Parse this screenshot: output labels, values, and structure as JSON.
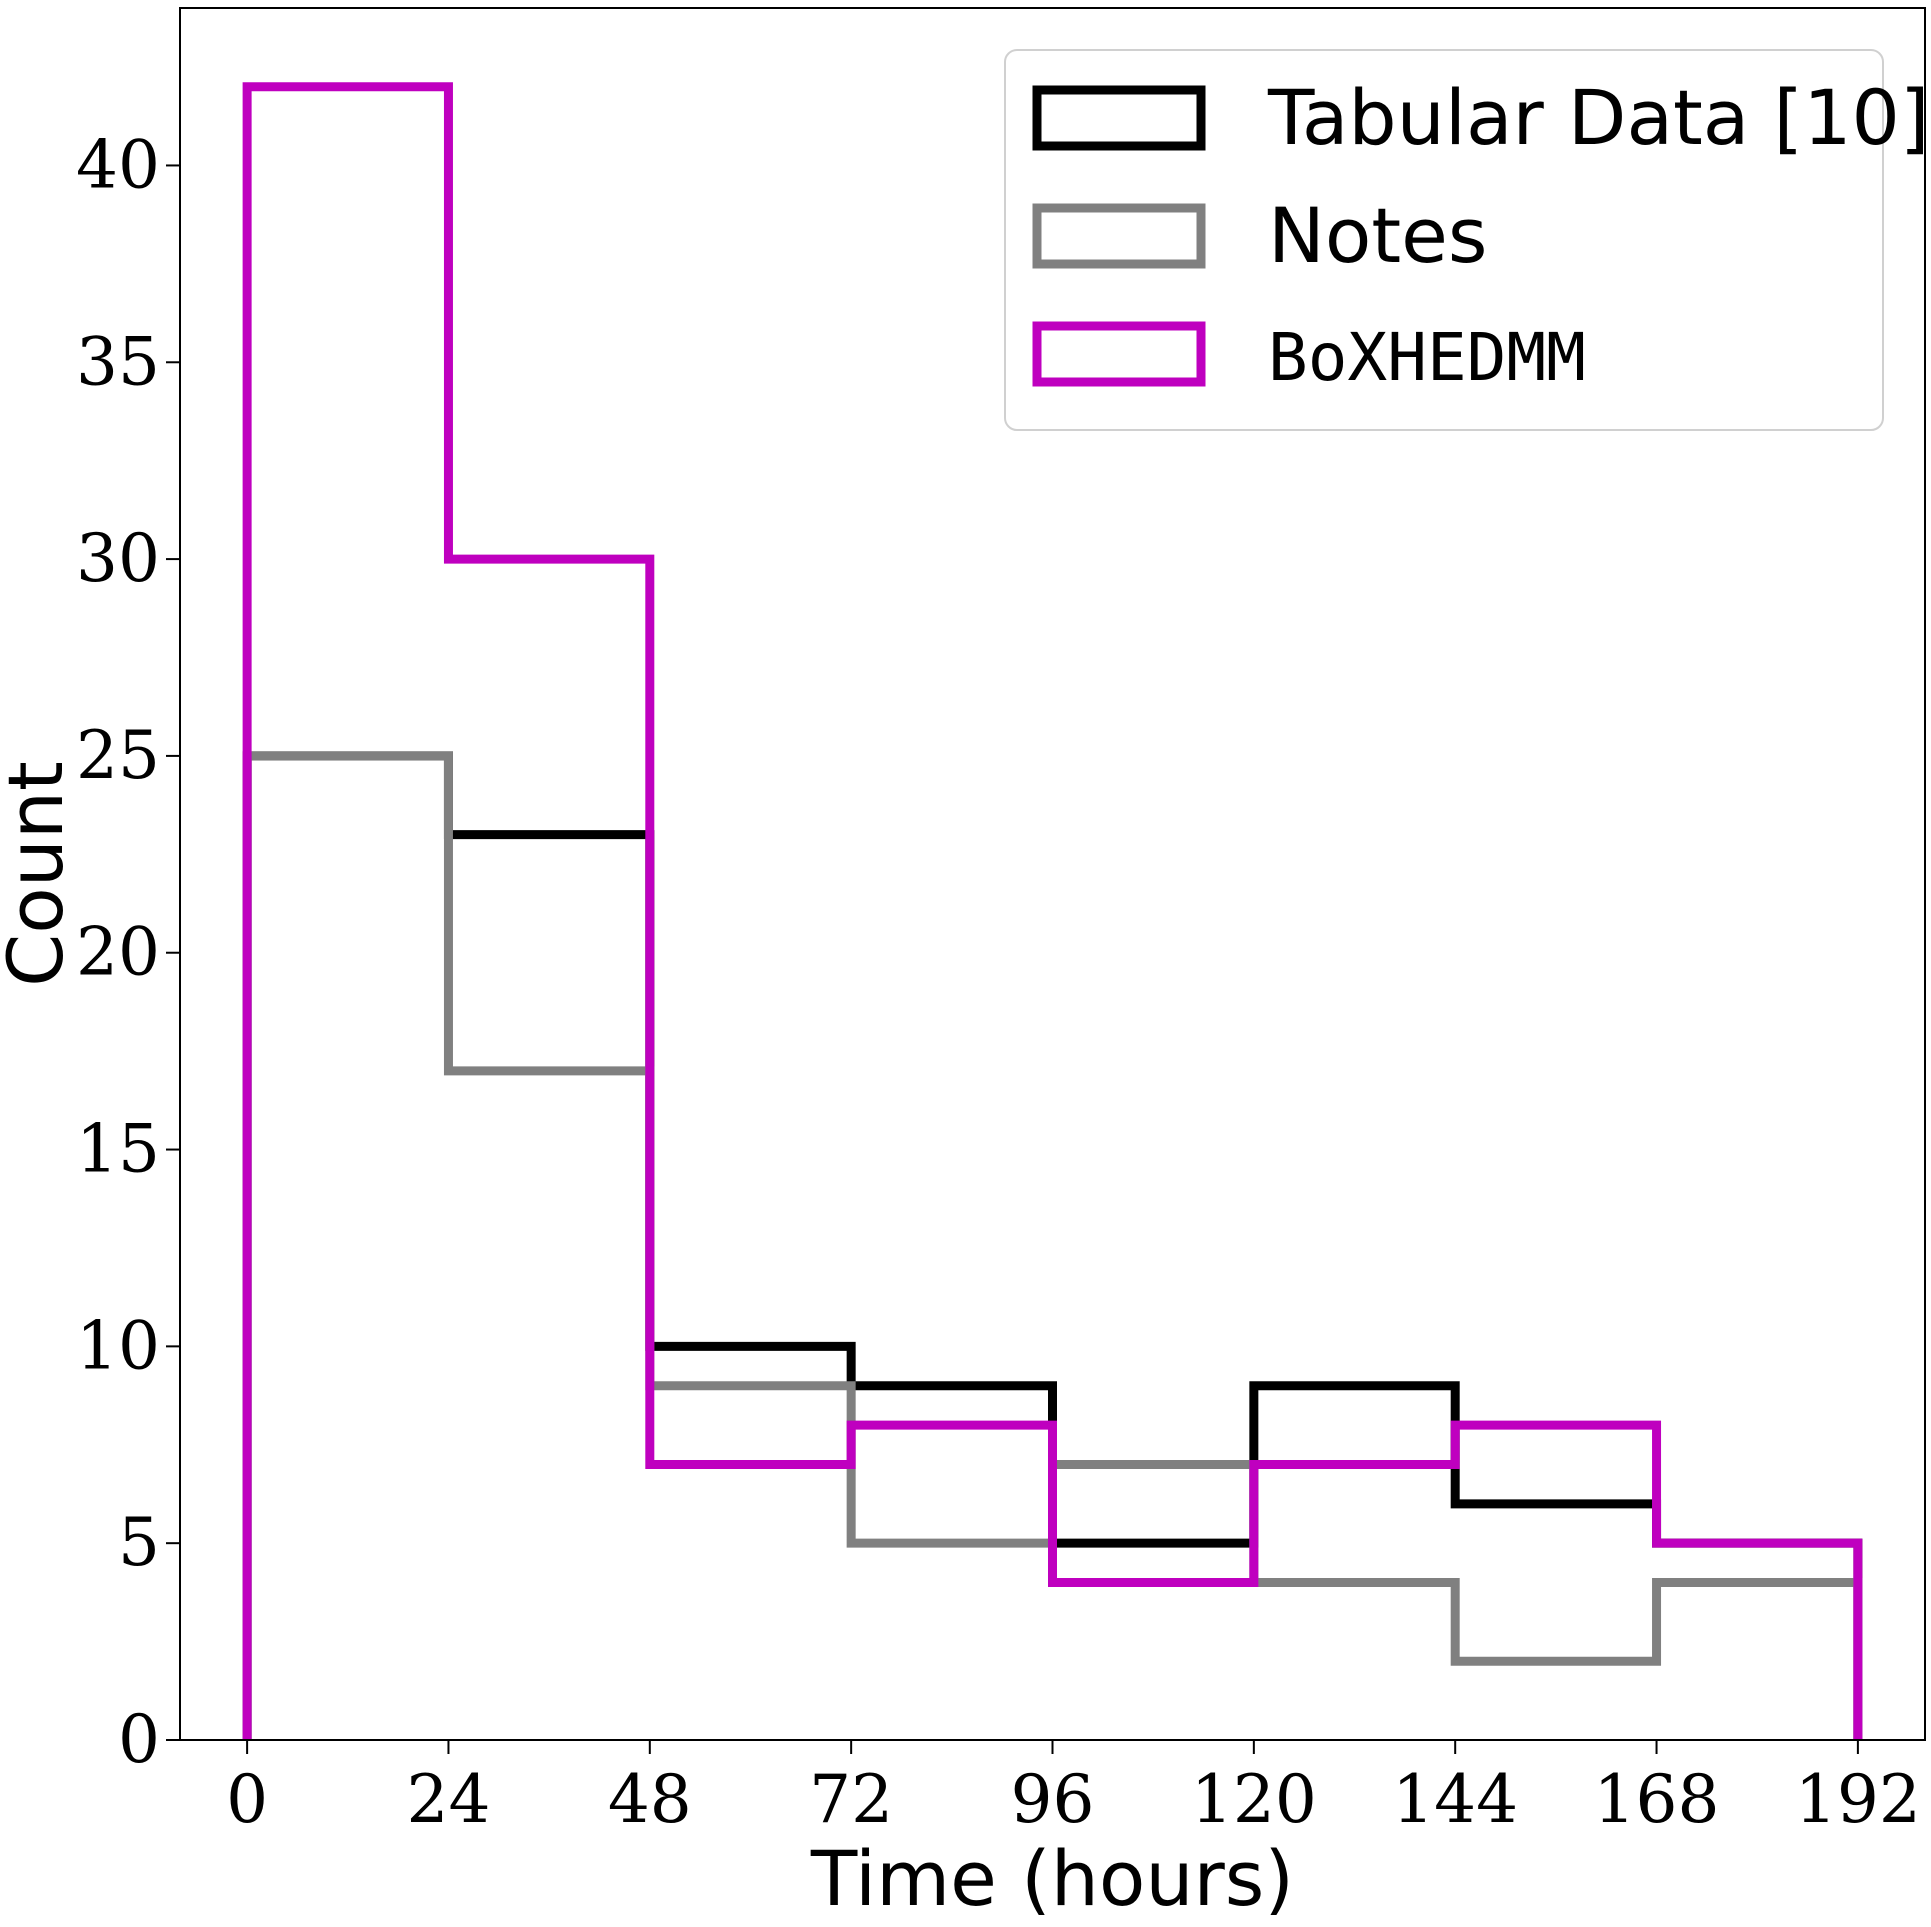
{
  "chart_data": {
    "type": "histogram",
    "xlabel": "Time (hours)",
    "ylabel": "Count",
    "xlim": [
      -8,
      200
    ],
    "ylim": [
      0,
      44
    ],
    "bin_edges": [
      0,
      24,
      48,
      72,
      96,
      120,
      144,
      168,
      192
    ],
    "xticks": [
      0,
      24,
      48,
      72,
      96,
      120,
      144,
      168,
      192
    ],
    "yticks": [
      0,
      5,
      10,
      15,
      20,
      25,
      30,
      35,
      40
    ],
    "legend_position": "top-right",
    "grid": false,
    "series": [
      {
        "name": "Tabular Data [10]",
        "color": "#000000",
        "values": [
          25,
          23,
          10,
          9,
          5,
          9,
          6,
          5
        ]
      },
      {
        "name": "Notes",
        "color": "#808080",
        "values": [
          25,
          17,
          9,
          5,
          7,
          4,
          2,
          4
        ]
      },
      {
        "name": "BoXHEDMM",
        "color": "#bf00bf",
        "values": [
          42,
          30,
          7,
          8,
          4,
          7,
          8,
          5
        ]
      }
    ]
  }
}
